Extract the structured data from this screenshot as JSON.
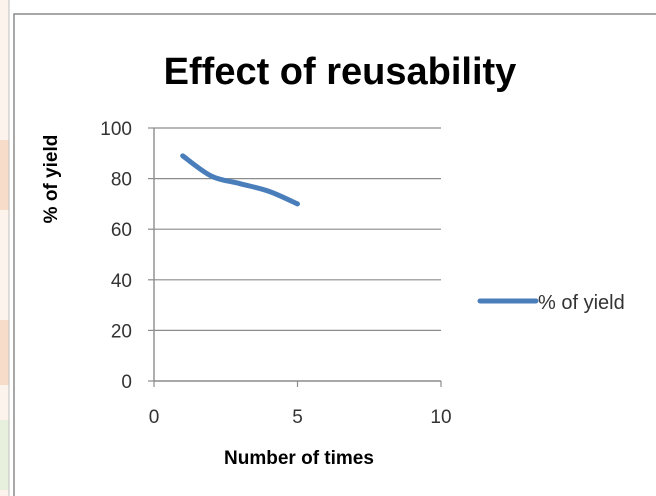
{
  "chart_data": {
    "type": "line",
    "title": "Effect of reusability",
    "xlabel": "Number of times",
    "ylabel": "% of yield",
    "xlim": [
      0,
      10
    ],
    "ylim": [
      0,
      100
    ],
    "x_ticks": [
      "0",
      "5",
      "10"
    ],
    "y_ticks": [
      "0",
      "20",
      "40",
      "60",
      "80",
      "100"
    ],
    "grid": "horizontal",
    "legend_position": "right",
    "series": [
      {
        "name": "% of yield",
        "color": "#4a7ebb",
        "x": [
          1,
          2,
          3,
          4,
          5
        ],
        "y": [
          89,
          81,
          78,
          75,
          70
        ]
      }
    ]
  }
}
